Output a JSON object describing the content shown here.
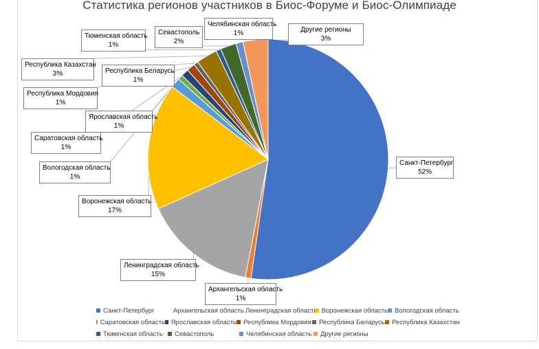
{
  "chart_data": {
    "type": "pie",
    "title": "Статистика регионов участников в Биос-Форуме и Биос-Олимпиаде",
    "start_angle_deg": 0,
    "direction": "clockwise",
    "slices": [
      {
        "name": "Санкт-Петербург",
        "value": 51.5,
        "label": "52%",
        "color": "#4472c4"
      },
      {
        "name": "Архангельская область",
        "value": 0.75,
        "label": "1%",
        "color": "#ed7d31"
      },
      {
        "name": "Ленинградская область",
        "value": 15.0,
        "label": "15%",
        "color": "#a5a5a5"
      },
      {
        "name": "Воронежская область",
        "value": 16.8,
        "label": "17%",
        "color": "#ffc000"
      },
      {
        "name": "Вологодская область",
        "value": 1.3,
        "label": "1%",
        "color": "#5b9bd5"
      },
      {
        "name": "Саратовская область",
        "value": 0.65,
        "label": "1%",
        "color": "#70ad47"
      },
      {
        "name": "Ярославская область",
        "value": 1.0,
        "label": "1%",
        "color": "#264478"
      },
      {
        "name": "Республика Мордовия",
        "value": 1.1,
        "label": "1%",
        "color": "#9e480e"
      },
      {
        "name": "Республика Беларусь",
        "value": 0.6,
        "label": "1%",
        "color": "#636363"
      },
      {
        "name": "Республика Казахстан",
        "value": 2.8,
        "label": "3%",
        "color": "#997300"
      },
      {
        "name": "Тюменская область",
        "value": 0.65,
        "label": "1%",
        "color": "#255e91"
      },
      {
        "name": "Севастополь",
        "value": 2.1,
        "label": "2%",
        "color": "#43682b"
      },
      {
        "name": "Челябинская область",
        "value": 0.95,
        "label": "1%",
        "color": "#698ed0"
      },
      {
        "name": "Другие регионы",
        "value": 3.3,
        "label": "3%",
        "color": "#f1975a"
      }
    ]
  }
}
